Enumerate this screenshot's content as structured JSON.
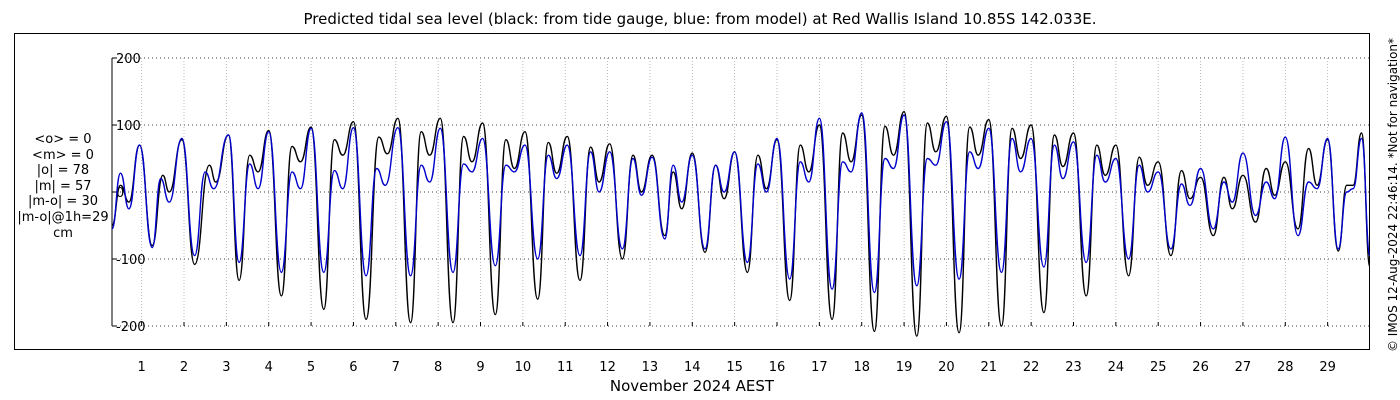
{
  "chart_data": {
    "type": "line",
    "title": "Predicted tidal sea level (black: from tide gauge, blue: from model) at Red Wallis Island 10.85S 142.033E.",
    "xlabel": "November 2024 AEST",
    "ylabel": "",
    "x_unit": "day of November 2024",
    "xlim": [
      0.3,
      30.0
    ],
    "ylim": [
      -200,
      200
    ],
    "y_ticks": [
      -200,
      -100,
      0,
      100,
      200
    ],
    "y_tick_labels": [
      "-200",
      "-100",
      "0",
      "100",
      "200"
    ],
    "x_ticks": [
      1,
      2,
      3,
      4,
      5,
      6,
      7,
      8,
      9,
      10,
      11,
      12,
      13,
      14,
      15,
      16,
      17,
      18,
      19,
      20,
      21,
      22,
      23,
      24,
      25,
      26,
      27,
      28,
      29
    ],
    "x_tick_labels": [
      "1",
      "2",
      "3",
      "4",
      "5",
      "6",
      "7",
      "8",
      "9",
      "10",
      "11",
      "12",
      "13",
      "14",
      "15",
      "16",
      "17",
      "18",
      "19",
      "20",
      "21",
      "22",
      "23",
      "24",
      "25",
      "26",
      "27",
      "28",
      "29"
    ],
    "grid": true,
    "series": [
      {
        "name": "from tide gauge",
        "color": "#000000",
        "points": [
          [
            0.3,
            -50
          ],
          [
            0.5,
            10
          ],
          [
            0.7,
            -15
          ],
          [
            0.95,
            70
          ],
          [
            1.25,
            -80
          ],
          [
            1.5,
            25
          ],
          [
            1.65,
            0
          ],
          [
            1.95,
            78
          ],
          [
            2.25,
            -108
          ],
          [
            2.6,
            40
          ],
          [
            2.75,
            15
          ],
          [
            3.05,
            85
          ],
          [
            3.3,
            -132
          ],
          [
            3.55,
            55
          ],
          [
            3.75,
            30
          ],
          [
            4.0,
            92
          ],
          [
            4.3,
            -155
          ],
          [
            4.55,
            68
          ],
          [
            4.75,
            45
          ],
          [
            5.0,
            97
          ],
          [
            5.3,
            -175
          ],
          [
            5.55,
            78
          ],
          [
            5.75,
            55
          ],
          [
            6.0,
            105
          ],
          [
            6.3,
            -190
          ],
          [
            6.6,
            82
          ],
          [
            6.8,
            57
          ],
          [
            7.05,
            110
          ],
          [
            7.35,
            -195
          ],
          [
            7.6,
            90
          ],
          [
            7.8,
            55
          ],
          [
            8.05,
            110
          ],
          [
            8.35,
            -195
          ],
          [
            8.6,
            83
          ],
          [
            8.8,
            45
          ],
          [
            9.05,
            103
          ],
          [
            9.35,
            -183
          ],
          [
            9.6,
            78
          ],
          [
            9.8,
            35
          ],
          [
            10.05,
            90
          ],
          [
            10.35,
            -160
          ],
          [
            10.6,
            74
          ],
          [
            10.8,
            28
          ],
          [
            11.05,
            83
          ],
          [
            11.35,
            -132
          ],
          [
            11.6,
            67
          ],
          [
            11.8,
            15
          ],
          [
            12.05,
            72
          ],
          [
            12.35,
            -100
          ],
          [
            12.6,
            55
          ],
          [
            12.8,
            0
          ],
          [
            13.05,
            55
          ],
          [
            13.35,
            -65
          ],
          [
            13.55,
            30
          ],
          [
            13.75,
            -25
          ],
          [
            14.0,
            58
          ],
          [
            14.3,
            -90
          ],
          [
            14.55,
            40
          ],
          [
            14.75,
            -10
          ],
          [
            15.0,
            60
          ],
          [
            15.3,
            -120
          ],
          [
            15.55,
            55
          ],
          [
            15.75,
            5
          ],
          [
            16.0,
            78
          ],
          [
            16.3,
            -162
          ],
          [
            16.55,
            70
          ],
          [
            16.75,
            30
          ],
          [
            17.0,
            100
          ],
          [
            17.3,
            -190
          ],
          [
            17.55,
            88
          ],
          [
            17.75,
            45
          ],
          [
            18.0,
            115
          ],
          [
            18.3,
            -208
          ],
          [
            18.55,
            98
          ],
          [
            18.75,
            55
          ],
          [
            19.0,
            120
          ],
          [
            19.3,
            -215
          ],
          [
            19.55,
            103
          ],
          [
            19.75,
            60
          ],
          [
            20.0,
            113
          ],
          [
            20.3,
            -210
          ],
          [
            20.55,
            97
          ],
          [
            20.75,
            55
          ],
          [
            21.0,
            108
          ],
          [
            21.3,
            -200
          ],
          [
            21.55,
            95
          ],
          [
            21.75,
            50
          ],
          [
            22.0,
            100
          ],
          [
            22.3,
            -180
          ],
          [
            22.55,
            85
          ],
          [
            22.75,
            38
          ],
          [
            23.0,
            88
          ],
          [
            23.3,
            -155
          ],
          [
            23.55,
            70
          ],
          [
            23.75,
            25
          ],
          [
            24.0,
            70
          ],
          [
            24.3,
            -125
          ],
          [
            24.55,
            52
          ],
          [
            24.75,
            10
          ],
          [
            25.0,
            45
          ],
          [
            25.3,
            -95
          ],
          [
            25.55,
            32
          ],
          [
            25.75,
            -10
          ],
          [
            26.0,
            22
          ],
          [
            26.3,
            -65
          ],
          [
            26.55,
            22
          ],
          [
            26.75,
            -25
          ],
          [
            27.0,
            25
          ],
          [
            27.3,
            -45
          ],
          [
            27.55,
            35
          ],
          [
            27.75,
            -5
          ],
          [
            28.0,
            45
          ],
          [
            28.3,
            -55
          ],
          [
            28.55,
            65
          ],
          [
            28.75,
            10
          ],
          [
            29.0,
            78
          ],
          [
            29.25,
            -88
          ],
          [
            29.45,
            10
          ],
          [
            29.6,
            10
          ],
          [
            29.8,
            88
          ],
          [
            30.0,
            -112
          ]
        ]
      },
      {
        "name": "from model",
        "color": "#0000cc",
        "points": [
          [
            0.3,
            -55
          ],
          [
            0.5,
            28
          ],
          [
            0.7,
            -25
          ],
          [
            0.95,
            70
          ],
          [
            1.25,
            -83
          ],
          [
            1.45,
            20
          ],
          [
            1.65,
            -15
          ],
          [
            1.95,
            80
          ],
          [
            2.25,
            -95
          ],
          [
            2.5,
            30
          ],
          [
            2.7,
            5
          ],
          [
            3.05,
            85
          ],
          [
            3.3,
            -105
          ],
          [
            3.55,
            42
          ],
          [
            3.75,
            5
          ],
          [
            4.0,
            90
          ],
          [
            4.3,
            -120
          ],
          [
            4.55,
            30
          ],
          [
            4.75,
            5
          ],
          [
            5.0,
            95
          ],
          [
            5.3,
            -120
          ],
          [
            5.55,
            32
          ],
          [
            5.75,
            5
          ],
          [
            6.0,
            96
          ],
          [
            6.3,
            -125
          ],
          [
            6.55,
            35
          ],
          [
            6.75,
            10
          ],
          [
            7.05,
            96
          ],
          [
            7.35,
            -125
          ],
          [
            7.6,
            40
          ],
          [
            7.8,
            15
          ],
          [
            8.05,
            95
          ],
          [
            8.35,
            -120
          ],
          [
            8.6,
            42
          ],
          [
            8.8,
            30
          ],
          [
            9.05,
            80
          ],
          [
            9.35,
            -110
          ],
          [
            9.6,
            40
          ],
          [
            9.8,
            30
          ],
          [
            10.05,
            70
          ],
          [
            10.35,
            -100
          ],
          [
            10.6,
            55
          ],
          [
            10.8,
            20
          ],
          [
            11.05,
            70
          ],
          [
            11.35,
            -95
          ],
          [
            11.6,
            60
          ],
          [
            11.8,
            0
          ],
          [
            12.05,
            60
          ],
          [
            12.35,
            -85
          ],
          [
            12.6,
            50
          ],
          [
            12.8,
            -5
          ],
          [
            13.05,
            52
          ],
          [
            13.35,
            -70
          ],
          [
            13.55,
            40
          ],
          [
            13.75,
            -15
          ],
          [
            14.0,
            55
          ],
          [
            14.3,
            -85
          ],
          [
            14.55,
            40
          ],
          [
            14.75,
            0
          ],
          [
            15.0,
            60
          ],
          [
            15.3,
            -105
          ],
          [
            15.55,
            42
          ],
          [
            15.75,
            0
          ],
          [
            16.0,
            80
          ],
          [
            16.3,
            -130
          ],
          [
            16.55,
            45
          ],
          [
            16.75,
            15
          ],
          [
            17.0,
            110
          ],
          [
            17.3,
            -145
          ],
          [
            17.55,
            45
          ],
          [
            17.75,
            30
          ],
          [
            18.0,
            118
          ],
          [
            18.3,
            -150
          ],
          [
            18.55,
            50
          ],
          [
            18.75,
            35
          ],
          [
            19.0,
            115
          ],
          [
            19.3,
            -140
          ],
          [
            19.55,
            50
          ],
          [
            19.75,
            40
          ],
          [
            20.0,
            105
          ],
          [
            20.3,
            -130
          ],
          [
            20.55,
            60
          ],
          [
            20.75,
            35
          ],
          [
            21.0,
            95
          ],
          [
            21.3,
            -120
          ],
          [
            21.55,
            80
          ],
          [
            21.75,
            30
          ],
          [
            22.0,
            80
          ],
          [
            22.3,
            -112
          ],
          [
            22.55,
            70
          ],
          [
            22.75,
            20
          ],
          [
            23.0,
            75
          ],
          [
            23.3,
            -105
          ],
          [
            23.55,
            55
          ],
          [
            23.75,
            15
          ],
          [
            24.0,
            50
          ],
          [
            24.3,
            -100
          ],
          [
            24.55,
            40
          ],
          [
            24.75,
            0
          ],
          [
            25.0,
            30
          ],
          [
            25.3,
            -85
          ],
          [
            25.55,
            12
          ],
          [
            25.75,
            -20
          ],
          [
            26.0,
            35
          ],
          [
            26.3,
            -55
          ],
          [
            26.55,
            15
          ],
          [
            26.75,
            -15
          ],
          [
            27.0,
            58
          ],
          [
            27.3,
            -35
          ],
          [
            27.55,
            15
          ],
          [
            27.75,
            -10
          ],
          [
            28.0,
            82
          ],
          [
            28.3,
            -65
          ],
          [
            28.55,
            15
          ],
          [
            28.75,
            5
          ],
          [
            29.0,
            80
          ],
          [
            29.25,
            -85
          ],
          [
            29.45,
            0
          ],
          [
            29.6,
            5
          ],
          [
            29.8,
            80
          ],
          [
            30.0,
            -95
          ]
        ]
      }
    ]
  },
  "stats": {
    "mean_o": "<o> = 0",
    "mean_m": "<m> = 0",
    "abs_o": "|o| = 78",
    "abs_m": "|m| = 57",
    "abs_diff": "|m-o| = 30",
    "abs_diff_1h": "|m-o|@1h=29",
    "unit": "cm"
  },
  "credit": "© IMOS 12-Aug-2024 22:46:14. *Not for navigation*"
}
